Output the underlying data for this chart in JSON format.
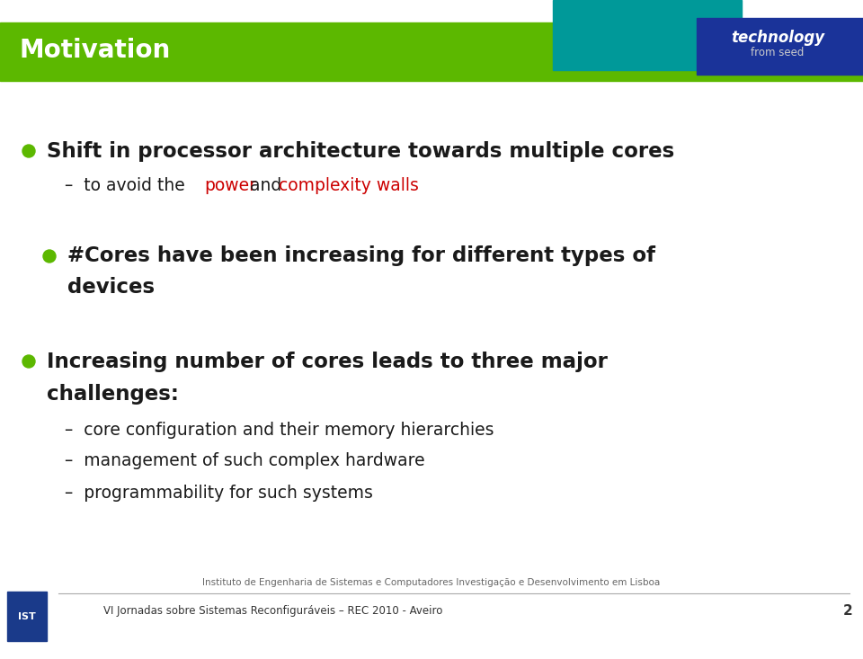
{
  "title": "Motivation",
  "title_color": "#ffffff",
  "title_bg_color": "#5cb800",
  "header_teal_color": "#009999",
  "header_navy_color": "#1a3399",
  "tech_text": "technology",
  "from_seed_text": "from seed",
  "bg_color": "#ffffff",
  "bullet_color": "#5cb800",
  "text_color": "#1a1a1a",
  "red_color": "#cc0000",
  "footer_line_color": "#aaaaaa",
  "footer_text1": "Instituto de Engenharia de Sistemas e Computadores Investigação e Desenvolvimento em Lisboa",
  "footer_text2": "VI Jornadas sobre Sistemas Reconfiguráveis – REC 2010 - Aveiro",
  "page_num": "2",
  "line1": "Shift in processor architecture towards multiple cores",
  "line2_prefix": "–  to avoid the ",
  "line2_red1": "power",
  "line2_mid": " and ",
  "line2_red2": "complexity walls",
  "line3a": "#Cores have been increasing for different types of",
  "line3b": "devices",
  "line4a": "Increasing number of cores leads to three major",
  "line4b": "challenges:",
  "sub1": "core configuration and their memory hierarchies",
  "sub2": "management of such complex hardware",
  "sub3": "programmability for such systems"
}
